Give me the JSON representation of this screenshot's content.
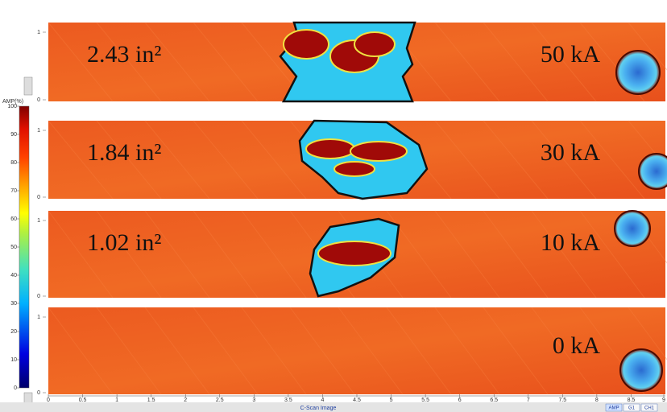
{
  "colorbar": {
    "title": "AMP(%)",
    "ticks": [
      0,
      10,
      20,
      30,
      40,
      50,
      60,
      70,
      80,
      90,
      100
    ]
  },
  "panels": [
    {
      "area": "2.43 in²",
      "current": "50 kA",
      "yticks": [
        0,
        1
      ]
    },
    {
      "area": "1.84 in²",
      "current": "30 kA",
      "yticks": [
        0,
        1
      ]
    },
    {
      "area": "1.02 in²",
      "current": "10 kA",
      "yticks": [
        0,
        1
      ]
    },
    {
      "current": "0 kA",
      "yticks": [
        0,
        1
      ]
    }
  ],
  "x_axis": {
    "ticks": [
      0,
      0.5,
      1,
      1.5,
      2,
      2.5,
      3,
      3.5,
      4,
      4.5,
      5,
      5.5,
      6,
      6.5,
      7,
      7.5,
      8,
      8.5,
      9
    ]
  },
  "status_bar": {
    "title": "C-Scan Image",
    "buttons": [
      "AMP",
      "G1",
      "CH1"
    ]
  }
}
